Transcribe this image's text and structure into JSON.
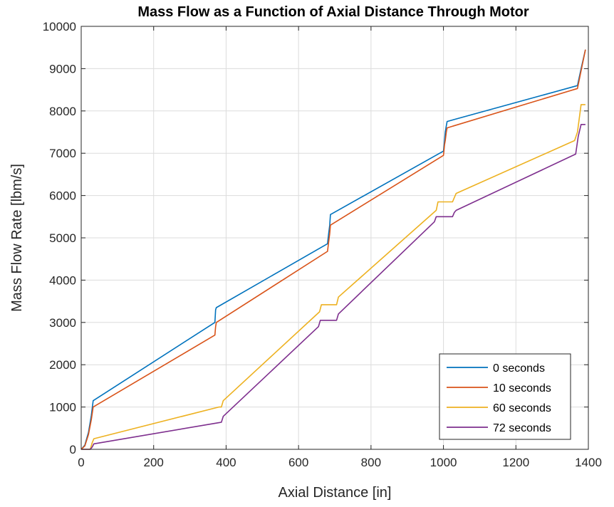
{
  "chart_data": {
    "type": "line",
    "title": "Mass Flow as a Function of Axial Distance Through Motor",
    "xlabel": "Axial Distance [in]",
    "ylabel": "Mass Flow Rate [lbm/s]",
    "xlim": [
      0,
      1400
    ],
    "ylim": [
      0,
      10000
    ],
    "xticks": [
      0,
      200,
      400,
      600,
      800,
      1000,
      1200,
      1400
    ],
    "yticks": [
      0,
      1000,
      2000,
      3000,
      4000,
      5000,
      6000,
      7000,
      8000,
      9000,
      10000
    ],
    "grid": true,
    "legend_position": "bottom-right",
    "series": [
      {
        "name": "0 seconds",
        "color": "#0072BD",
        "x": [
          0,
          10,
          20,
          28,
          33,
          369,
          371,
          373,
          680,
          683,
          686,
          688,
          1000,
          1003,
          1005,
          1008,
          1010,
          1370,
          1380,
          1392
        ],
        "y": [
          0,
          100,
          400,
          800,
          1150,
          3000,
          3300,
          3350,
          4860,
          5100,
          5300,
          5550,
          7050,
          7300,
          7500,
          7650,
          7750,
          8600,
          9000,
          9450
        ]
      },
      {
        "name": "10 seconds",
        "color": "#D95319",
        "x": [
          0,
          10,
          20,
          28,
          33,
          369,
          371,
          373,
          680,
          683,
          686,
          688,
          1000,
          1003,
          1005,
          1008,
          1010,
          1370,
          1380,
          1392
        ],
        "y": [
          0,
          80,
          350,
          700,
          1000,
          2700,
          2900,
          3000,
          4680,
          4900,
          5100,
          5300,
          6950,
          7200,
          7300,
          7500,
          7600,
          8530,
          8950,
          9450
        ]
      },
      {
        "name": "60 seconds",
        "color": "#EDB120",
        "x": [
          0,
          25,
          30,
          35,
          380,
          387,
          392,
          658,
          663,
          705,
          710,
          980,
          985,
          1025,
          1030,
          1035,
          1362,
          1370,
          1380,
          1392
        ],
        "y": [
          0,
          0,
          150,
          250,
          1000,
          1000,
          1150,
          3250,
          3420,
          3420,
          3600,
          5650,
          5850,
          5850,
          5950,
          6050,
          7300,
          7500,
          8150,
          8150
        ]
      },
      {
        "name": "72 seconds",
        "color": "#7E2F8E",
        "x": [
          0,
          25,
          30,
          35,
          380,
          387,
          392,
          655,
          660,
          705,
          710,
          975,
          980,
          1025,
          1030,
          1035,
          1365,
          1372,
          1380,
          1392
        ],
        "y": [
          0,
          0,
          50,
          130,
          630,
          640,
          780,
          2900,
          3050,
          3050,
          3200,
          5380,
          5500,
          5500,
          5600,
          5650,
          6980,
          7400,
          7680,
          7680
        ]
      }
    ]
  }
}
